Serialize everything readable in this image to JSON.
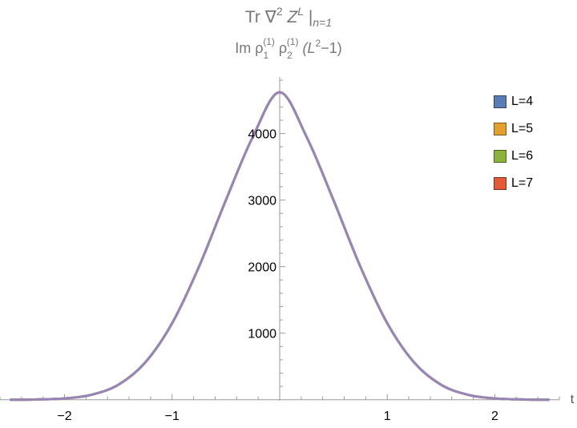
{
  "title": {
    "line1": {
      "prefix": "Tr ∇",
      "sup1": "2",
      "mid": " Z",
      "sup2": "L",
      "bar": " |",
      "sub": "n=1"
    },
    "line2": {
      "a": "Im ρ",
      "a_sub": "1",
      "a_sup": "(1)",
      "b": " ρ",
      "b_sub": "2",
      "b_sup": "(1)",
      "c": " (L",
      "c_sup": "2",
      "d": "−1)"
    }
  },
  "chart_data": {
    "type": "line",
    "xlabel": "t",
    "ylabel": "",
    "xlim": [
      -2.6,
      2.6
    ],
    "ylim": [
      -15,
      4850
    ],
    "x_ticks": [
      -2,
      -1,
      1,
      2
    ],
    "x_tick_labels": [
      "−2",
      "−1",
      "1",
      "2"
    ],
    "y_ticks": [
      1000,
      2000,
      3000,
      4000
    ],
    "y_tick_labels": [
      "1000",
      "2000",
      "3000",
      "4000"
    ],
    "grid": false,
    "legend_position": "top-right",
    "x": [
      -2.5,
      -2.25,
      -2.0,
      -1.75,
      -1.5,
      -1.25,
      -1.0,
      -0.75,
      -0.5,
      -0.25,
      0.0,
      0.25,
      0.5,
      0.75,
      1.0,
      1.25,
      1.5,
      1.75,
      2.0,
      2.25,
      2.5
    ],
    "series": [
      {
        "name": "L=4",
        "color": "#5B7DB6",
        "values": [
          0,
          5,
          20,
          75,
          225,
          560,
          1150,
          2000,
          3000,
          3950,
          4620,
          3950,
          3000,
          2000,
          1150,
          560,
          225,
          75,
          20,
          5,
          0
        ]
      },
      {
        "name": "L=5",
        "color": "#E2A12E",
        "values": [
          0,
          5,
          20,
          75,
          225,
          560,
          1150,
          2000,
          3000,
          3950,
          4620,
          3950,
          3000,
          2000,
          1150,
          560,
          225,
          75,
          20,
          5,
          0
        ]
      },
      {
        "name": "L=6",
        "color": "#8CB43C",
        "values": [
          0,
          5,
          20,
          75,
          225,
          560,
          1150,
          2000,
          3000,
          3950,
          4620,
          3950,
          3000,
          2000,
          1150,
          560,
          225,
          75,
          20,
          5,
          0
        ]
      },
      {
        "name": "L=7",
        "color": "#E05B36",
        "values": [
          0,
          5,
          20,
          75,
          225,
          560,
          1150,
          2000,
          3000,
          3950,
          4620,
          3950,
          3000,
          2000,
          1150,
          560,
          225,
          75,
          20,
          5,
          0
        ]
      }
    ],
    "visible_curve_color": "#9884B8"
  }
}
